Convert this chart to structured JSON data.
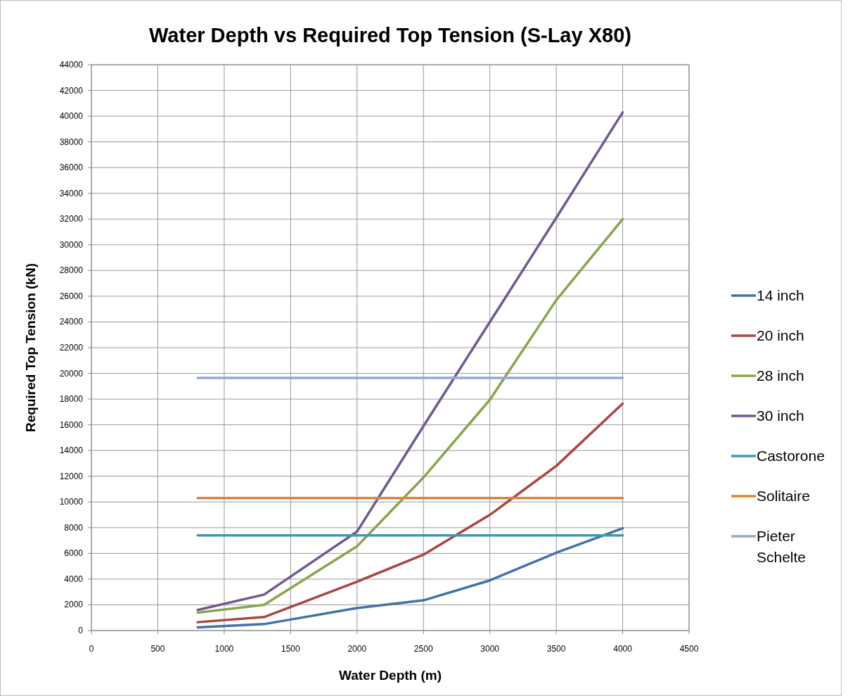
{
  "chart_data": {
    "type": "line",
    "title": "Water Depth vs Required Top Tension (S-Lay X80)",
    "xlabel": "Water Depth (m)",
    "ylabel": "Required Top Tension (kN)",
    "x": [
      800,
      1300,
      2000,
      2500,
      3000,
      3500,
      4000
    ],
    "series": [
      {
        "name": "14 inch",
        "color": "#4572a7",
        "values": [
          250,
          500,
          1750,
          2350,
          3900,
          6050,
          7950
        ]
      },
      {
        "name": "20 inch",
        "color": "#aa4643",
        "values": [
          650,
          1050,
          3800,
          5900,
          9000,
          12800,
          17650
        ]
      },
      {
        "name": "28 inch",
        "color": "#89a54e",
        "values": [
          1400,
          2000,
          6550,
          11900,
          17950,
          25700,
          32000
        ]
      },
      {
        "name": "30 inch",
        "color": "#71588f",
        "values": [
          1600,
          2800,
          7700,
          15900,
          24000,
          32100,
          40300
        ]
      },
      {
        "name": "Castorone",
        "color": "#4198af",
        "values": [
          7400,
          7400,
          7400,
          7400,
          7400,
          7400,
          7400
        ]
      },
      {
        "name": "Solitaire",
        "color": "#db843d",
        "values": [
          10300,
          10300,
          10300,
          10300,
          10300,
          10300,
          10300
        ]
      },
      {
        "name": "Pieter Schelte",
        "color": "#93a9cf",
        "values": [
          19650,
          19650,
          19650,
          19650,
          19650,
          19650,
          19650
        ]
      }
    ],
    "xlim": [
      0,
      4500
    ],
    "xticks": [
      0,
      500,
      1000,
      1500,
      2000,
      2500,
      3000,
      3500,
      4000,
      4500
    ],
    "ylim": [
      0,
      44000
    ],
    "yticks": [
      0,
      2000,
      4000,
      6000,
      8000,
      10000,
      12000,
      14000,
      16000,
      18000,
      20000,
      22000,
      24000,
      26000,
      28000,
      30000,
      32000,
      34000,
      36000,
      38000,
      40000,
      42000,
      44000
    ],
    "grid": true,
    "legend": "right",
    "line_style": "solid"
  }
}
